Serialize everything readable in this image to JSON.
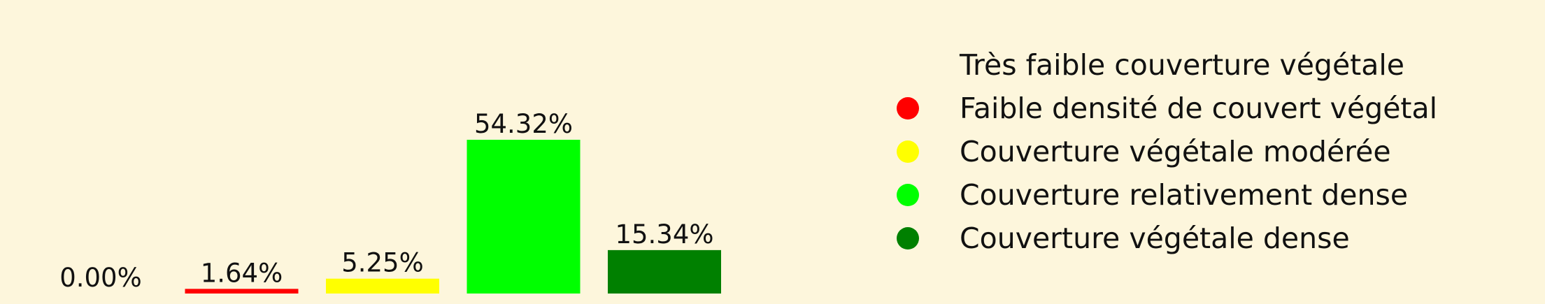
{
  "chart_data": {
    "type": "bar",
    "categories": [
      "Très faible couverture végétale",
      "Faible densité de couvert végétal",
      "Couverture végétale modérée",
      "Couverture relativement dense",
      "Couverture végétale dense"
    ],
    "values": [
      0.0,
      1.64,
      5.25,
      54.32,
      15.34
    ],
    "value_labels": [
      "0.00%",
      "1.64%",
      "5.25%",
      "54.32%",
      "15.34%"
    ],
    "colors": [
      "#fdf6dc",
      "#ff0000",
      "#ffff00",
      "#00ff00",
      "#008000"
    ],
    "ylim": [
      0,
      54.32
    ],
    "grid": false,
    "legend": "right",
    "title": "",
    "xlabel": "",
    "ylabel": ""
  }
}
